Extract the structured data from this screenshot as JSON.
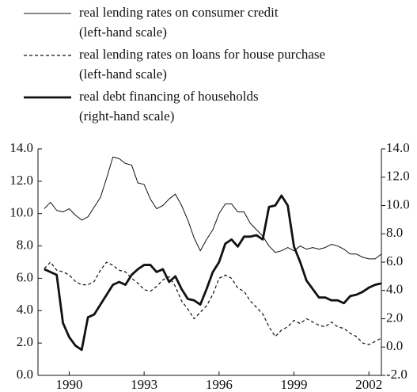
{
  "chart_data": {
    "type": "line",
    "x": [
      1989,
      1989.25,
      1989.5,
      1989.75,
      1990,
      1990.25,
      1990.5,
      1990.75,
      1991,
      1991.25,
      1991.5,
      1991.75,
      1992,
      1992.25,
      1992.5,
      1992.75,
      1993,
      1993.25,
      1993.5,
      1993.75,
      1994,
      1994.25,
      1994.5,
      1994.75,
      1995,
      1995.25,
      1995.5,
      1995.75,
      1996,
      1996.25,
      1996.5,
      1996.75,
      1997,
      1997.25,
      1997.5,
      1997.75,
      1998,
      1998.25,
      1998.5,
      1998.75,
      1999,
      1999.25,
      1999.5,
      1999.75,
      2000,
      2000.25,
      2000.5,
      2000.75,
      2001,
      2001.25,
      2001.5,
      2001.75,
      2002,
      2002.25,
      2002.5
    ],
    "series": [
      {
        "name": "real lending rates on consumer credit\n(left-hand scale)",
        "color": "#111111",
        "style": "solid",
        "width": 1,
        "values": [
          10.3,
          10.7,
          10.2,
          10.1,
          10.3,
          9.9,
          9.6,
          9.8,
          10.4,
          11.0,
          12.2,
          13.5,
          13.4,
          13.1,
          13.0,
          11.9,
          11.8,
          10.9,
          10.3,
          10.5,
          10.9,
          11.2,
          10.5,
          9.6,
          8.5,
          7.7,
          8.4,
          9.0,
          10.0,
          10.6,
          10.6,
          10.1,
          10.1,
          9.4,
          9.0,
          8.6,
          8.0,
          7.6,
          7.7,
          7.9,
          7.7,
          8.0,
          7.8,
          7.9,
          7.8,
          7.9,
          8.1,
          8.0,
          7.8,
          7.5,
          7.5,
          7.3,
          7.2,
          7.2,
          7.5
        ]
      },
      {
        "name": "real lending rates on loans for house purchase\n(left-hand scale)",
        "color": "#111111",
        "style": "dashed",
        "width": 1.2,
        "values": [
          6.6,
          7.0,
          6.5,
          6.4,
          6.2,
          5.8,
          5.6,
          5.6,
          5.8,
          6.5,
          7.0,
          6.8,
          6.5,
          6.4,
          6.0,
          5.7,
          5.3,
          5.2,
          5.5,
          5.9,
          6.1,
          5.5,
          4.6,
          4.1,
          3.5,
          3.9,
          4.3,
          5.0,
          6.0,
          6.2,
          6.0,
          5.4,
          5.2,
          4.6,
          4.2,
          3.8,
          3.0,
          2.4,
          2.8,
          3.0,
          3.4,
          3.2,
          3.5,
          3.3,
          3.1,
          3.0,
          3.3,
          3.0,
          2.9,
          2.6,
          2.4,
          2.0,
          1.9,
          2.1,
          2.3
        ]
      },
      {
        "name": "real debt financing of households\n(right-hand scale)",
        "color": "#111111",
        "style": "solid",
        "width": 2.8,
        "axis": "y2",
        "values": [
          5.5,
          5.3,
          5.1,
          1.7,
          0.7,
          0.1,
          -0.2,
          2.1,
          2.3,
          3.0,
          3.7,
          4.4,
          4.6,
          4.4,
          5.1,
          5.5,
          5.8,
          5.8,
          5.3,
          5.5,
          4.6,
          5.0,
          4.1,
          3.4,
          3.3,
          3.0,
          4.1,
          5.3,
          6.0,
          7.3,
          7.6,
          7.1,
          7.8,
          7.8,
          7.9,
          7.6,
          9.9,
          10.0,
          10.7,
          10.0,
          7.1,
          6.0,
          4.7,
          4.1,
          3.5,
          3.5,
          3.3,
          3.3,
          3.1,
          3.6,
          3.7,
          3.9,
          4.2,
          4.4,
          4.5
        ]
      }
    ],
    "xlim": [
      1988.75,
      2002.5
    ],
    "xticks": [
      1990,
      1993,
      1996,
      1999,
      2002
    ],
    "ylim": [
      0,
      14
    ],
    "yticks": [
      {
        "value": 0,
        "label": "0.0"
      },
      {
        "value": 2,
        "label": "2.0"
      },
      {
        "value": 4,
        "label": "4.0"
      },
      {
        "value": 6,
        "label": "6.0"
      },
      {
        "value": 8,
        "label": "8.0"
      },
      {
        "value": 10,
        "label": "10.0"
      },
      {
        "value": 12,
        "label": "12.0"
      },
      {
        "value": 14,
        "label": "14.0"
      }
    ],
    "y2lim": [
      -2,
      14
    ],
    "y2ticks": [
      {
        "value": -2,
        "label": "-2.0"
      },
      {
        "value": 0,
        "label": "0.0"
      },
      {
        "value": 2,
        "label": "2.0"
      },
      {
        "value": 4,
        "label": "4.0"
      },
      {
        "value": 6,
        "label": "6.0"
      },
      {
        "value": 8,
        "label": "8.0"
      },
      {
        "value": 10,
        "label": "10.0"
      },
      {
        "value": 12,
        "label": "12.0"
      },
      {
        "value": 14,
        "label": "14.0"
      }
    ],
    "legend": "top"
  }
}
